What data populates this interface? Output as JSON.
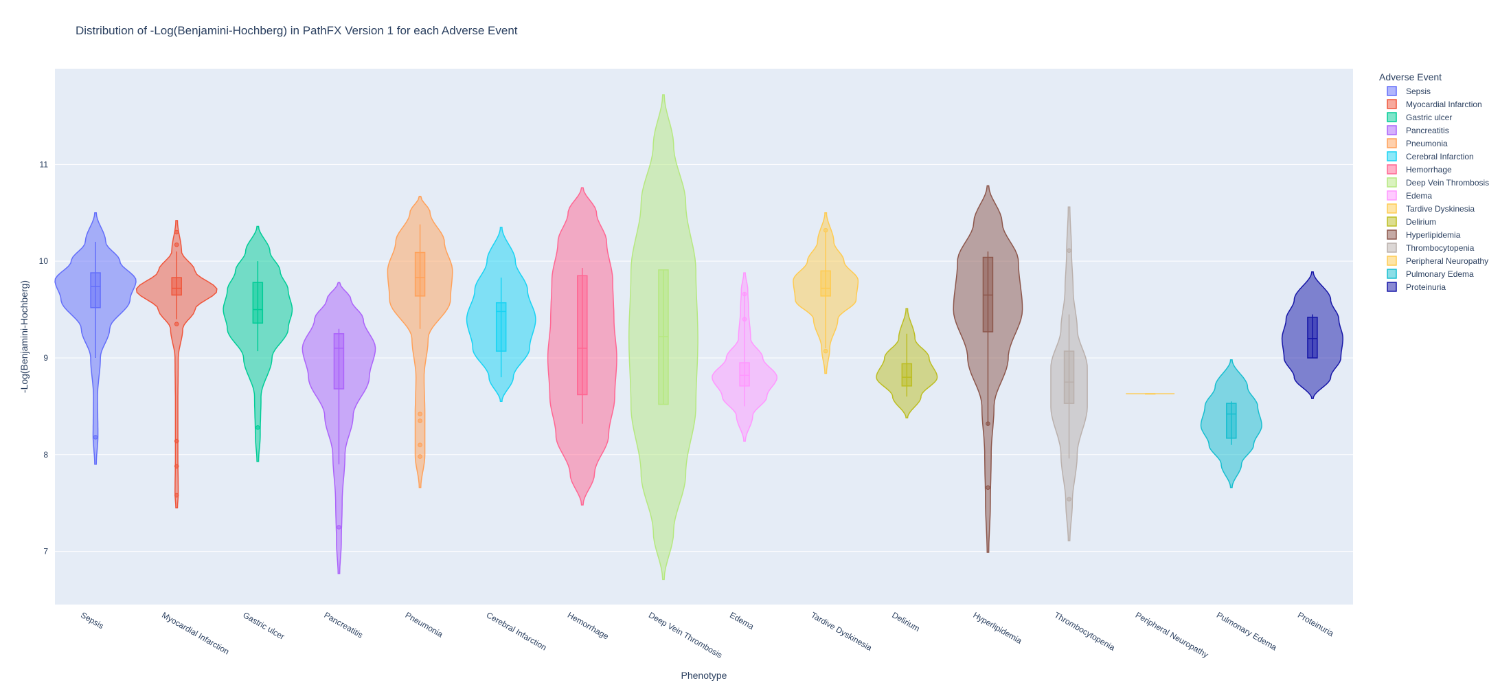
{
  "chart_data": {
    "type": "violin",
    "title": "Distribution of -Log(Benjamini-Hochberg) in PathFX Version 1 for each Adverse Event",
    "xlabel": "Phenotype",
    "ylabel": "-Log(Benjamini-Hochberg)",
    "ylim": [
      6.45,
      11.99
    ],
    "yticks": [
      "7",
      "8",
      "9",
      "10",
      "11"
    ],
    "grid": true,
    "legend_title": "Adverse Event",
    "legend_position": "right",
    "categories": [
      "Sepsis",
      "Myocardial Infarction",
      "Gastric ulcer",
      "Pancreatitis",
      "Pneumonia",
      "Cerebral Infarction",
      "Hemorrhage",
      "Deep Vein Thrombosis",
      "Edema",
      "Tardive Dyskinesia",
      "Delirium",
      "Hyperlipidemia",
      "Thrombocytopenia",
      "Peripheral Neuropathy",
      "Pulmonary Edema",
      "Proteinuria"
    ],
    "series": [
      {
        "name": "Sepsis",
        "color": "#636efa",
        "min": 7.9,
        "max": 10.5,
        "box": [
          9.52,
          9.74,
          9.88
        ],
        "whiskers": [
          9.0,
          10.2
        ],
        "outliers": [
          8.18
        ],
        "profile": [
          [
            7.9,
            0.02
          ],
          [
            8.2,
            0.06
          ],
          [
            8.6,
            0.05
          ],
          [
            9.0,
            0.12
          ],
          [
            9.3,
            0.35
          ],
          [
            9.6,
            0.85
          ],
          [
            9.8,
            1.0
          ],
          [
            10.0,
            0.6
          ],
          [
            10.2,
            0.25
          ],
          [
            10.5,
            0.02
          ]
        ]
      },
      {
        "name": "Myocardial Infarction",
        "color": "#ef553b",
        "min": 7.45,
        "max": 10.42,
        "box": [
          9.65,
          9.72,
          9.83
        ],
        "whiskers": [
          9.4,
          10.1
        ],
        "outliers": [
          7.58,
          7.88,
          8.14,
          9.35,
          10.17,
          10.3
        ],
        "profile": [
          [
            7.45,
            0.02
          ],
          [
            7.6,
            0.04
          ],
          [
            8.0,
            0.03
          ],
          [
            8.5,
            0.03
          ],
          [
            9.0,
            0.04
          ],
          [
            9.3,
            0.15
          ],
          [
            9.5,
            0.45
          ],
          [
            9.7,
            1.0
          ],
          [
            9.9,
            0.45
          ],
          [
            10.1,
            0.12
          ],
          [
            10.42,
            0.02
          ]
        ]
      },
      {
        "name": "Gastric ulcer",
        "color": "#00cc96",
        "min": 7.93,
        "max": 10.36,
        "box": [
          9.36,
          9.5,
          9.78
        ],
        "whiskers": [
          9.07,
          10.0
        ],
        "outliers": [
          8.28
        ],
        "profile": [
          [
            7.93,
            0.02
          ],
          [
            8.2,
            0.06
          ],
          [
            8.6,
            0.08
          ],
          [
            9.0,
            0.35
          ],
          [
            9.3,
            0.75
          ],
          [
            9.5,
            0.85
          ],
          [
            9.7,
            0.75
          ],
          [
            9.9,
            0.55
          ],
          [
            10.1,
            0.3
          ],
          [
            10.36,
            0.02
          ]
        ]
      },
      {
        "name": "Pancreatitis",
        "color": "#ab63fa",
        "min": 6.77,
        "max": 9.78,
        "box": [
          8.68,
          9.1,
          9.25
        ],
        "whiskers": [
          7.9,
          9.3
        ],
        "outliers": [
          7.25
        ],
        "profile": [
          [
            6.77,
            0.02
          ],
          [
            7.1,
            0.06
          ],
          [
            7.5,
            0.08
          ],
          [
            8.0,
            0.15
          ],
          [
            8.4,
            0.35
          ],
          [
            8.8,
            0.75
          ],
          [
            9.1,
            0.9
          ],
          [
            9.4,
            0.6
          ],
          [
            9.6,
            0.3
          ],
          [
            9.78,
            0.02
          ]
        ]
      },
      {
        "name": "Pneumonia",
        "color": "#ffa15a",
        "min": 7.66,
        "max": 10.67,
        "box": [
          9.64,
          9.83,
          10.09
        ],
        "whiskers": [
          9.3,
          10.38
        ],
        "outliers": [
          7.98,
          8.1,
          8.35,
          8.42
        ],
        "profile": [
          [
            7.66,
            0.02
          ],
          [
            8.0,
            0.12
          ],
          [
            8.4,
            0.12
          ],
          [
            8.8,
            0.1
          ],
          [
            9.2,
            0.2
          ],
          [
            9.6,
            0.75
          ],
          [
            9.9,
            0.8
          ],
          [
            10.2,
            0.6
          ],
          [
            10.5,
            0.25
          ],
          [
            10.67,
            0.02
          ]
        ]
      },
      {
        "name": "Cerebral Infarction",
        "color": "#19d3f3",
        "min": 8.55,
        "max": 10.35,
        "box": [
          9.07,
          9.48,
          9.57
        ],
        "whiskers": [
          8.8,
          9.83
        ],
        "outliers": [],
        "profile": [
          [
            8.55,
            0.02
          ],
          [
            8.8,
            0.3
          ],
          [
            9.1,
            0.7
          ],
          [
            9.4,
            0.85
          ],
          [
            9.7,
            0.65
          ],
          [
            10.0,
            0.35
          ],
          [
            10.35,
            0.02
          ]
        ]
      },
      {
        "name": "Hemorrhage",
        "color": "#ff6692",
        "min": 7.48,
        "max": 10.76,
        "box": [
          8.62,
          9.1,
          9.85
        ],
        "whiskers": [
          8.32,
          9.93
        ],
        "outliers": [],
        "profile": [
          [
            7.48,
            0.02
          ],
          [
            7.8,
            0.3
          ],
          [
            8.2,
            0.65
          ],
          [
            8.6,
            0.8
          ],
          [
            9.0,
            0.85
          ],
          [
            9.4,
            0.78
          ],
          [
            9.8,
            0.75
          ],
          [
            10.2,
            0.6
          ],
          [
            10.5,
            0.35
          ],
          [
            10.76,
            0.02
          ]
        ]
      },
      {
        "name": "Deep Vein Thrombosis",
        "color": "#b6e880",
        "min": 6.71,
        "max": 11.72,
        "box": [
          8.52,
          9.22,
          9.91
        ],
        "whiskers": [
          8.52,
          9.91
        ],
        "outliers": [],
        "profile": [
          [
            6.71,
            0.02
          ],
          [
            7.2,
            0.25
          ],
          [
            7.8,
            0.55
          ],
          [
            8.5,
            0.8
          ],
          [
            9.2,
            0.85
          ],
          [
            9.9,
            0.8
          ],
          [
            10.6,
            0.55
          ],
          [
            11.2,
            0.25
          ],
          [
            11.72,
            0.02
          ]
        ]
      },
      {
        "name": "Edema",
        "color": "#ff97ff",
        "min": 8.14,
        "max": 9.88,
        "box": [
          8.71,
          8.82,
          8.95
        ],
        "whiskers": [
          8.5,
          9.68
        ],
        "outliers": [
          9.4,
          9.66
        ],
        "profile": [
          [
            8.14,
            0.02
          ],
          [
            8.4,
            0.2
          ],
          [
            8.6,
            0.55
          ],
          [
            8.8,
            0.8
          ],
          [
            9.0,
            0.45
          ],
          [
            9.2,
            0.15
          ],
          [
            9.5,
            0.1
          ],
          [
            9.7,
            0.08
          ],
          [
            9.88,
            0.02
          ]
        ]
      },
      {
        "name": "Tardive Dyskinesia",
        "color": "#fecb52",
        "min": 8.84,
        "max": 10.5,
        "box": [
          9.64,
          9.72,
          9.9
        ],
        "whiskers": [
          9.1,
          10.3
        ],
        "outliers": [
          9.07,
          10.32
        ],
        "profile": [
          [
            8.84,
            0.02
          ],
          [
            9.1,
            0.1
          ],
          [
            9.4,
            0.3
          ],
          [
            9.6,
            0.75
          ],
          [
            9.8,
            0.8
          ],
          [
            10.0,
            0.45
          ],
          [
            10.2,
            0.2
          ],
          [
            10.5,
            0.02
          ]
        ]
      },
      {
        "name": "Delirium",
        "color": "#bcbd22",
        "min": 8.38,
        "max": 9.51,
        "box": [
          8.71,
          8.8,
          8.94
        ],
        "whiskers": [
          8.6,
          9.25
        ],
        "outliers": [],
        "profile": [
          [
            8.38,
            0.02
          ],
          [
            8.6,
            0.35
          ],
          [
            8.8,
            0.75
          ],
          [
            9.0,
            0.55
          ],
          [
            9.2,
            0.2
          ],
          [
            9.51,
            0.02
          ]
        ]
      },
      {
        "name": "Hyperlipidemia",
        "color": "#8c564b",
        "min": 6.99,
        "max": 10.78,
        "box": [
          9.27,
          9.65,
          10.04
        ],
        "whiskers": [
          8.3,
          10.1
        ],
        "outliers": [
          7.66,
          8.32
        ],
        "profile": [
          [
            6.99,
            0.02
          ],
          [
            7.5,
            0.06
          ],
          [
            8.0,
            0.08
          ],
          [
            8.5,
            0.15
          ],
          [
            9.0,
            0.5
          ],
          [
            9.5,
            0.85
          ],
          [
            10.0,
            0.75
          ],
          [
            10.4,
            0.35
          ],
          [
            10.78,
            0.02
          ]
        ]
      },
      {
        "name": "Thrombocytopenia",
        "color": "#bab0ac",
        "min": 7.11,
        "max": 10.56,
        "box": [
          8.53,
          8.75,
          9.07
        ],
        "whiskers": [
          7.96,
          9.45
        ],
        "outliers": [
          7.54,
          10.11
        ],
        "profile": [
          [
            7.11,
            0.02
          ],
          [
            7.5,
            0.08
          ],
          [
            8.0,
            0.2
          ],
          [
            8.5,
            0.45
          ],
          [
            8.9,
            0.45
          ],
          [
            9.3,
            0.2
          ],
          [
            9.7,
            0.1
          ],
          [
            10.1,
            0.06
          ],
          [
            10.56,
            0.02
          ]
        ]
      },
      {
        "name": "Peripheral Neuropathy",
        "color": "#fecb52",
        "min": 8.63,
        "max": 8.63,
        "box": [
          8.63,
          8.63,
          8.63
        ],
        "whiskers": [
          8.63,
          8.63
        ],
        "outliers": [],
        "profile": []
      },
      {
        "name": "Pulmonary Edema",
        "color": "#17becf",
        "min": 7.66,
        "max": 8.98,
        "box": [
          8.17,
          8.42,
          8.53
        ],
        "whiskers": [
          8.1,
          8.55
        ],
        "outliers": [],
        "profile": [
          [
            7.66,
            0.02
          ],
          [
            7.9,
            0.25
          ],
          [
            8.1,
            0.55
          ],
          [
            8.3,
            0.75
          ],
          [
            8.5,
            0.65
          ],
          [
            8.7,
            0.4
          ],
          [
            8.98,
            0.02
          ]
        ]
      },
      {
        "name": "Proteinuria",
        "color": "#1616a7",
        "min": 8.58,
        "max": 9.89,
        "box": [
          9.0,
          9.2,
          9.42
        ],
        "whiskers": [
          9.0,
          9.45
        ],
        "outliers": [],
        "profile": [
          [
            8.58,
            0.02
          ],
          [
            8.8,
            0.45
          ],
          [
            9.0,
            0.7
          ],
          [
            9.2,
            0.75
          ],
          [
            9.4,
            0.65
          ],
          [
            9.6,
            0.45
          ],
          [
            9.89,
            0.02
          ]
        ]
      }
    ]
  }
}
